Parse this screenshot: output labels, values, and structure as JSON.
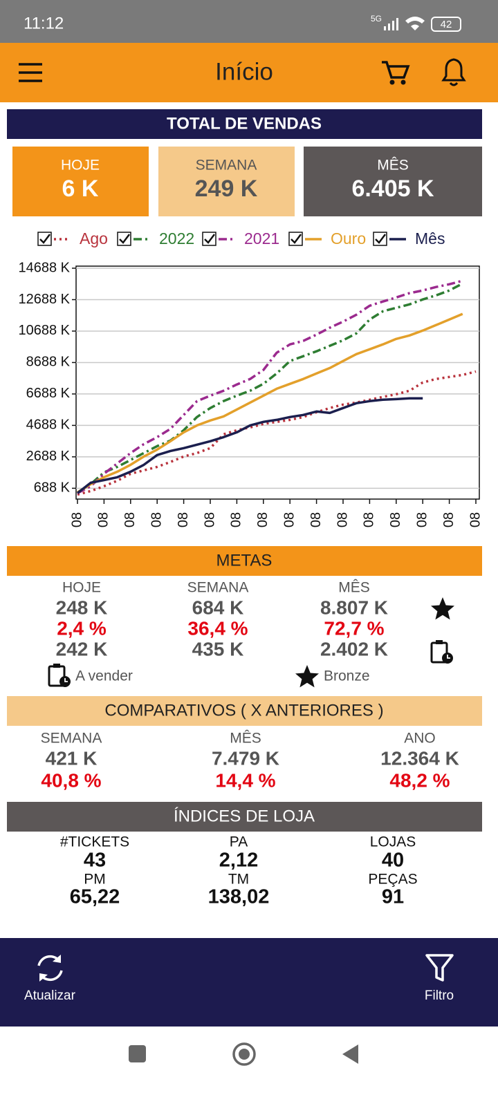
{
  "status_bar": {
    "time": "11:12",
    "network": "5G",
    "battery": "42"
  },
  "app_bar": {
    "title": "Início"
  },
  "total_vendas": {
    "title": "TOTAL DE VENDAS",
    "cards": [
      {
        "label": "HOJE",
        "value": "6 K"
      },
      {
        "label": "SEMANA",
        "value": "249 K"
      },
      {
        "label": "MÊS",
        "value": "6.405 K"
      }
    ]
  },
  "chart_data": {
    "type": "line",
    "categories": [
      "08",
      null,
      "08",
      null,
      "08",
      null,
      "08",
      null,
      "08",
      null,
      "08",
      null,
      "08",
      null,
      "08",
      null,
      "08",
      null,
      "08",
      null,
      "08",
      null,
      "08",
      null,
      "08",
      null,
      "08",
      null,
      "08",
      null,
      "08"
    ],
    "series": [
      {
        "name": "Ago",
        "color": "#b8323c",
        "style": "dotted",
        "values": [
          290,
          510,
          820,
          1170,
          1610,
          1830,
          2050,
          2360,
          2710,
          2930,
          3240,
          4120,
          4380,
          4560,
          4780,
          4910,
          5040,
          5220,
          5530,
          5790,
          6010,
          6140,
          6320,
          6500,
          6670,
          6890,
          7420,
          7640,
          7770,
          7900,
          8120
        ]
      },
      {
        "name": "2022",
        "color": "#2e7d32",
        "style": "dashdot",
        "values": [
          420,
          950,
          1700,
          2050,
          2490,
          2930,
          3370,
          3720,
          4380,
          5220,
          5790,
          6230,
          6580,
          6890,
          7330,
          7990,
          8780,
          9090,
          9400,
          9750,
          10100,
          10540,
          11420,
          11950,
          12170,
          12390,
          12700,
          12960,
          13270,
          13710,
          null
        ]
      },
      {
        "name": "2021",
        "color": "#9b2a8e",
        "style": "dashdot",
        "values": [
          380,
          820,
          1610,
          2270,
          2930,
          3500,
          3940,
          4470,
          5350,
          6230,
          6580,
          6890,
          7290,
          7640,
          8210,
          9310,
          9840,
          10060,
          10460,
          10900,
          11290,
          11730,
          12300,
          12570,
          12830,
          13100,
          13270,
          13490,
          13670,
          13890,
          null
        ]
      },
      {
        "name": "Ouro",
        "color": "#e3a02b",
        "style": "solid",
        "values": [
          420,
          950,
          1390,
          1740,
          2180,
          2710,
          3150,
          3680,
          4250,
          4690,
          5000,
          5260,
          5700,
          6140,
          6580,
          7020,
          7330,
          7640,
          7990,
          8340,
          8780,
          9220,
          9530,
          9840,
          10190,
          10410,
          10720,
          11070,
          11420,
          11780,
          null
        ]
      },
      {
        "name": "Mês",
        "color": "#1b1f4e",
        "style": "solid",
        "values": [
          380,
          1040,
          1210,
          1390,
          1740,
          2180,
          2800,
          3060,
          3240,
          3460,
          3680,
          3940,
          4250,
          4690,
          4910,
          5040,
          5220,
          5350,
          5570,
          5480,
          5790,
          6100,
          6230,
          6320,
          6360,
          6410,
          6410,
          null,
          null,
          null,
          null
        ]
      }
    ],
    "ylim": [
      0,
      14820
    ],
    "yticks": [
      {
        "value": 688,
        "label": "688 K"
      },
      {
        "value": 2688,
        "label": "2688 K"
      },
      {
        "value": 4688,
        "label": "4688 K"
      },
      {
        "value": 6688,
        "label": "6688 K"
      },
      {
        "value": 8688,
        "label": "8688 K"
      },
      {
        "value": 10688,
        "label": "10688 K"
      },
      {
        "value": 12688,
        "label": "12688 K"
      },
      {
        "value": 14688,
        "label": "14688 K"
      }
    ],
    "grid": true,
    "legend": "top"
  },
  "metas": {
    "title": "METAS",
    "columns": [
      {
        "label": "HOJE",
        "meta": "248 K",
        "percent": "2,4 %",
        "remaining": "242 K"
      },
      {
        "label": "SEMANA",
        "meta": "684 K",
        "percent": "36,4 %",
        "remaining": "435 K"
      },
      {
        "label": "MÊS",
        "meta": "8.807 K",
        "percent": "72,7 %",
        "remaining": "2.402 K"
      }
    ],
    "remaining_legend": "A vender",
    "star_legend": "Bronze"
  },
  "comparativos": {
    "title": "COMPARATIVOS ( X ANTERIORES )",
    "columns": [
      {
        "label": "SEMANA",
        "value": "421 K",
        "percent": "40,8 %"
      },
      {
        "label": "MÊS",
        "value": "7.479 K",
        "percent": "14,4 %"
      },
      {
        "label": "ANO",
        "value": "12.364 K",
        "percent": "48,2 %"
      }
    ]
  },
  "indices": {
    "title": "ÍNDICES DE LOJA",
    "items": [
      {
        "label": "#TICKETS",
        "value": "43"
      },
      {
        "label": "PA",
        "value": "2,12"
      },
      {
        "label": "LOJAS",
        "value": "40"
      },
      {
        "label": "PM",
        "value": "65,22"
      },
      {
        "label": "TM",
        "value": "138,02"
      },
      {
        "label": "PEÇAS",
        "value": "91"
      }
    ]
  },
  "bottom_bar": {
    "refresh": "Atualizar",
    "filter": "Filtro"
  }
}
